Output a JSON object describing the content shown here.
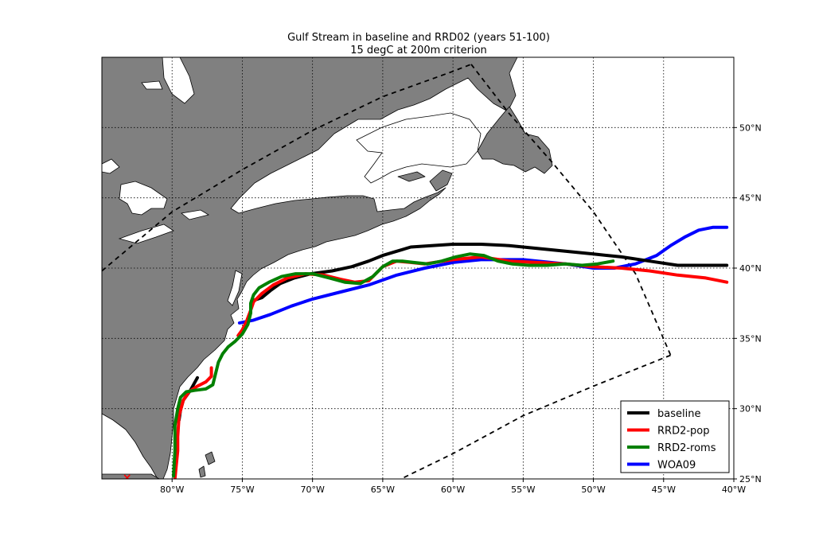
{
  "chart_data": {
    "type": "line",
    "title": "Gulf Stream in baseline and RRD02 (years 51-100)",
    "subtitle": "15 degC at 200m criterion",
    "xlim": [
      -85,
      -40
    ],
    "ylim": [
      25,
      55
    ],
    "x_ticks": [
      -80,
      -75,
      -70,
      -65,
      -60,
      -55,
      -50,
      -45,
      -40
    ],
    "x_tick_labels": [
      "80°W",
      "75°W",
      "70°W",
      "65°W",
      "60°W",
      "55°W",
      "50°W",
      "45°W",
      "40°W"
    ],
    "y_ticks": [
      30,
      35,
      40,
      45,
      50
    ],
    "y_tick_labels": [
      "25°N",
      "30°N",
      "35°N",
      "40°N",
      "45°N",
      "50°N"
    ],
    "y_tick_label_values": [
      25,
      30,
      35,
      40,
      45,
      50
    ],
    "grid": true,
    "legend_position": "bottom-right",
    "series": [
      {
        "name": "baseline",
        "color": "#000000",
        "x": [
          -78.2,
          -78.7,
          -79.2,
          -79.4,
          -79.5
        ],
        "y": [
          32.2,
          31.3,
          30.6,
          29.9,
          29.2
        ],
        "x2": [
          -74.2,
          -73.6,
          -73.0,
          -72.3,
          -71.3,
          -70.1,
          -68.6,
          -67.2,
          -66.0,
          -65.0,
          -64.0,
          -63.0,
          -61.5,
          -60.0,
          -58.0,
          -56.0,
          -54.0,
          -52.0,
          -50.0,
          -48.0,
          -46.0,
          -44.0,
          -42.0,
          -40.5
        ],
        "y2": [
          37.7,
          37.9,
          38.4,
          38.9,
          39.3,
          39.6,
          39.8,
          40.1,
          40.5,
          40.9,
          41.2,
          41.5,
          41.6,
          41.7,
          41.7,
          41.6,
          41.4,
          41.2,
          41.0,
          40.8,
          40.5,
          40.2,
          40.2,
          40.2
        ]
      },
      {
        "name": "RRD2-pop",
        "color": "#ff0000",
        "x": [
          -79.8,
          -79.7,
          -79.6,
          -79.6,
          -79.5,
          -79.2,
          -78.8,
          -78.2,
          -77.6,
          -77.2,
          -77.2
        ],
        "y": [
          25.0,
          26.0,
          27.0,
          28.0,
          29.5,
          30.6,
          31.2,
          31.6,
          31.9,
          32.3,
          32.9
        ],
        "x2": [
          -75.3,
          -75.0,
          -74.7,
          -74.4,
          -74.2,
          -73.6,
          -72.8,
          -71.8,
          -70.5,
          -69.2,
          -68.0,
          -67.0,
          -66.0,
          -65.0,
          -64.0,
          -63.0,
          -62.0,
          -60.0,
          -58.0,
          -56.0,
          -54.0,
          -52.0,
          -50.0,
          -48.0,
          -46.0,
          -44.0,
          -42.0,
          -40.5
        ],
        "y2": [
          35.2,
          35.6,
          36.2,
          37.0,
          37.6,
          38.2,
          38.8,
          39.3,
          39.6,
          39.5,
          39.2,
          39.0,
          39.1,
          40.1,
          40.5,
          40.4,
          40.3,
          40.6,
          40.8,
          40.5,
          40.4,
          40.3,
          40.1,
          40.0,
          39.8,
          39.5,
          39.3,
          39.0
        ],
        "marker": {
          "label": "×",
          "x": -83.2,
          "y": 25.1
        }
      },
      {
        "name": "RRD2-roms",
        "color": "#008000",
        "x": [
          -79.9,
          -79.8,
          -79.8,
          -79.6,
          -79.4,
          -79.0,
          -78.4,
          -77.6,
          -77.1,
          -76.9,
          -76.7,
          -76.4,
          -76.0,
          -75.5,
          -75.0,
          -74.6,
          -74.4,
          -74.4,
          -74.2,
          -73.8,
          -73.1,
          -72.2,
          -71.2,
          -70.0,
          -68.8,
          -67.7,
          -66.6,
          -65.7,
          -65.0,
          -64.3,
          -63.6,
          -62.8,
          -61.8,
          -60.8,
          -59.8,
          -58.8,
          -57.8,
          -56.8,
          -55.8,
          -54.6,
          -53.3,
          -52.0,
          -50.8,
          -49.7,
          -48.6
        ],
        "y": [
          25.2,
          27.0,
          28.8,
          30.0,
          30.8,
          31.2,
          31.3,
          31.4,
          31.7,
          32.5,
          33.3,
          33.9,
          34.4,
          34.8,
          35.3,
          36.0,
          36.8,
          37.5,
          38.1,
          38.6,
          39.0,
          39.4,
          39.6,
          39.6,
          39.3,
          39.0,
          38.9,
          39.4,
          40.1,
          40.5,
          40.5,
          40.4,
          40.3,
          40.5,
          40.8,
          41.0,
          40.9,
          40.5,
          40.3,
          40.2,
          40.2,
          40.3,
          40.2,
          40.3,
          40.5
        ]
      },
      {
        "name": "WOA09",
        "color": "#0000ff",
        "x": [
          -75.2,
          -74.2,
          -73.0,
          -71.5,
          -70.0,
          -68.0,
          -66.0,
          -64.0,
          -62.0,
          -60.0,
          -58.0,
          -55.0,
          -52.0,
          -50.0,
          -48.5,
          -47.0,
          -45.5,
          -44.5,
          -43.5,
          -42.5,
          -41.5,
          -40.5
        ],
        "y": [
          36.1,
          36.3,
          36.7,
          37.3,
          37.8,
          38.3,
          38.8,
          39.5,
          40.0,
          40.4,
          40.6,
          40.6,
          40.3,
          40.0,
          40.0,
          40.3,
          40.9,
          41.6,
          42.2,
          42.7,
          42.9,
          42.9
        ]
      }
    ],
    "domain_boundary": {
      "style": "dashed",
      "top": {
        "x": [
          -85,
          -80,
          -75,
          -70,
          -65,
          -60,
          -58.7
        ],
        "y": [
          39.8,
          44.0,
          47.0,
          49.8,
          52.2,
          54.0,
          54.5
        ]
      },
      "right": {
        "x": [
          -58.7,
          -56,
          -53,
          -50,
          -47,
          -44.5
        ],
        "y": [
          54.5,
          51.0,
          47.6,
          44.0,
          39.6,
          33.8
        ]
      },
      "bottom": {
        "x": [
          -44.5,
          -50,
          -55,
          -60,
          -63.7
        ],
        "y": [
          33.8,
          31.6,
          29.5,
          26.8,
          25.0
        ]
      }
    }
  }
}
